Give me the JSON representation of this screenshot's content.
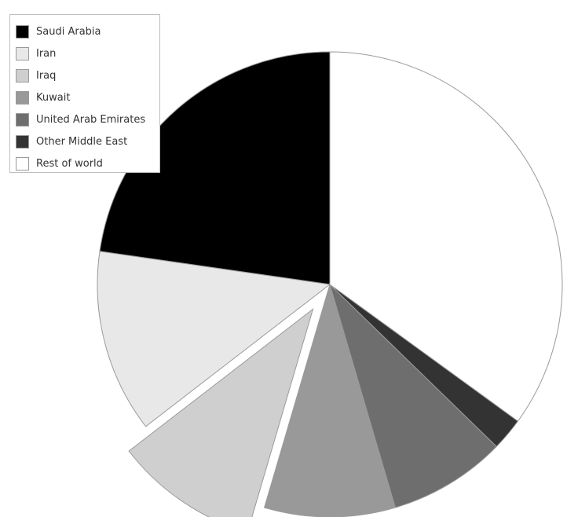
{
  "chart_data": {
    "type": "pie",
    "title": "",
    "slices": [
      {
        "name": "Saudi Arabia",
        "value": 25,
        "color": "#000000",
        "exploded": false
      },
      {
        "name": "Iran",
        "value": 14,
        "color": "#e8e8e8",
        "exploded": false
      },
      {
        "name": "Iraq",
        "value": 11,
        "color": "#cfcfcf",
        "exploded": true
      },
      {
        "name": "Kuwait",
        "value": 10,
        "color": "#999999",
        "exploded": false
      },
      {
        "name": "United Arab Emirates",
        "value": 9,
        "color": "#6e6e6e",
        "exploded": false
      },
      {
        "name": "Other Middle East",
        "value": 2.5,
        "color": "#333333",
        "exploded": false
      },
      {
        "name": "Rest of world",
        "value": 38.5,
        "color": "#ffffff",
        "exploded": false
      }
    ],
    "start_direction": "12 o'clock",
    "order": "counterclockwise from Saudi Arabia",
    "legend_position": "top-left",
    "slice_edge_color": "#9a9a9a"
  }
}
